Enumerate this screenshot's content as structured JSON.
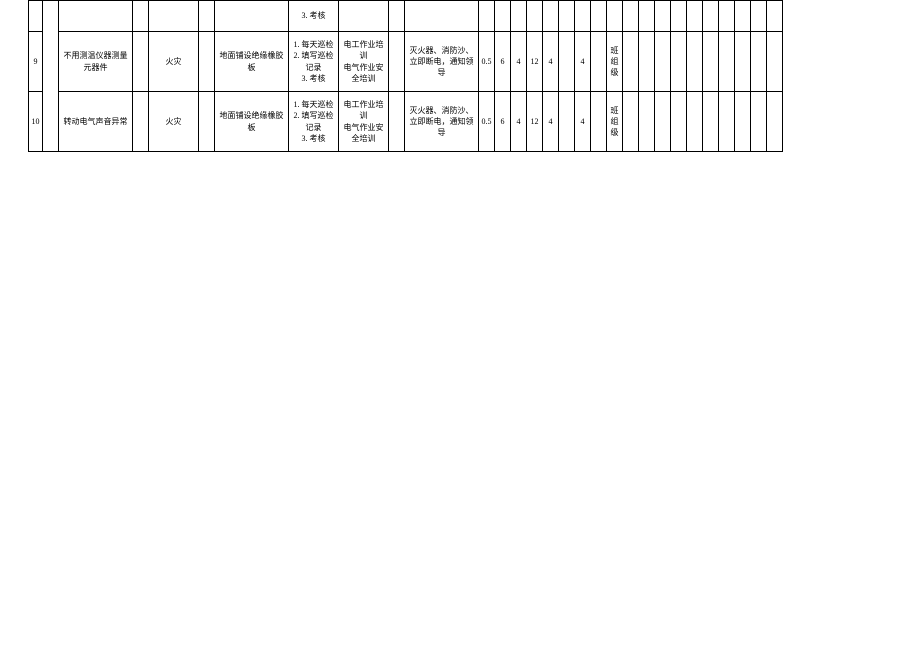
{
  "table": {
    "top_row": {
      "col7_line": "3. 考核"
    },
    "rows": [
      {
        "num": "9",
        "c2": "不用测温仪器测量元器件",
        "c4": "火灾",
        "c6": "地面铺设绝缘橡胶板",
        "c7": "1. 每天巡检\n2. 填写巡检记录\n3. 考核",
        "c8": "电工作业培训\n电气作业安全培训",
        "c10": "灭火器、消防沙、立即断电，通知领导",
        "c11": "0.5",
        "c12": "6",
        "c13": "4",
        "c14": "12",
        "c15": "4",
        "c17": "4",
        "c19": "班组级"
      },
      {
        "num": "10",
        "c2": "转动电气声音异常",
        "c4": "火灾",
        "c6": "地面铺设绝缘橡胶板",
        "c7": "1. 每天巡检\n2. 填写巡检记录\n3. 考核",
        "c8": "电工作业培训\n电气作业安全培训",
        "c10": "灭火器、消防沙、立即断电，通知领导",
        "c11": "0.5",
        "c12": "6",
        "c13": "4",
        "c14": "12",
        "c15": "4",
        "c17": "4",
        "c19": "班组级"
      }
    ]
  }
}
